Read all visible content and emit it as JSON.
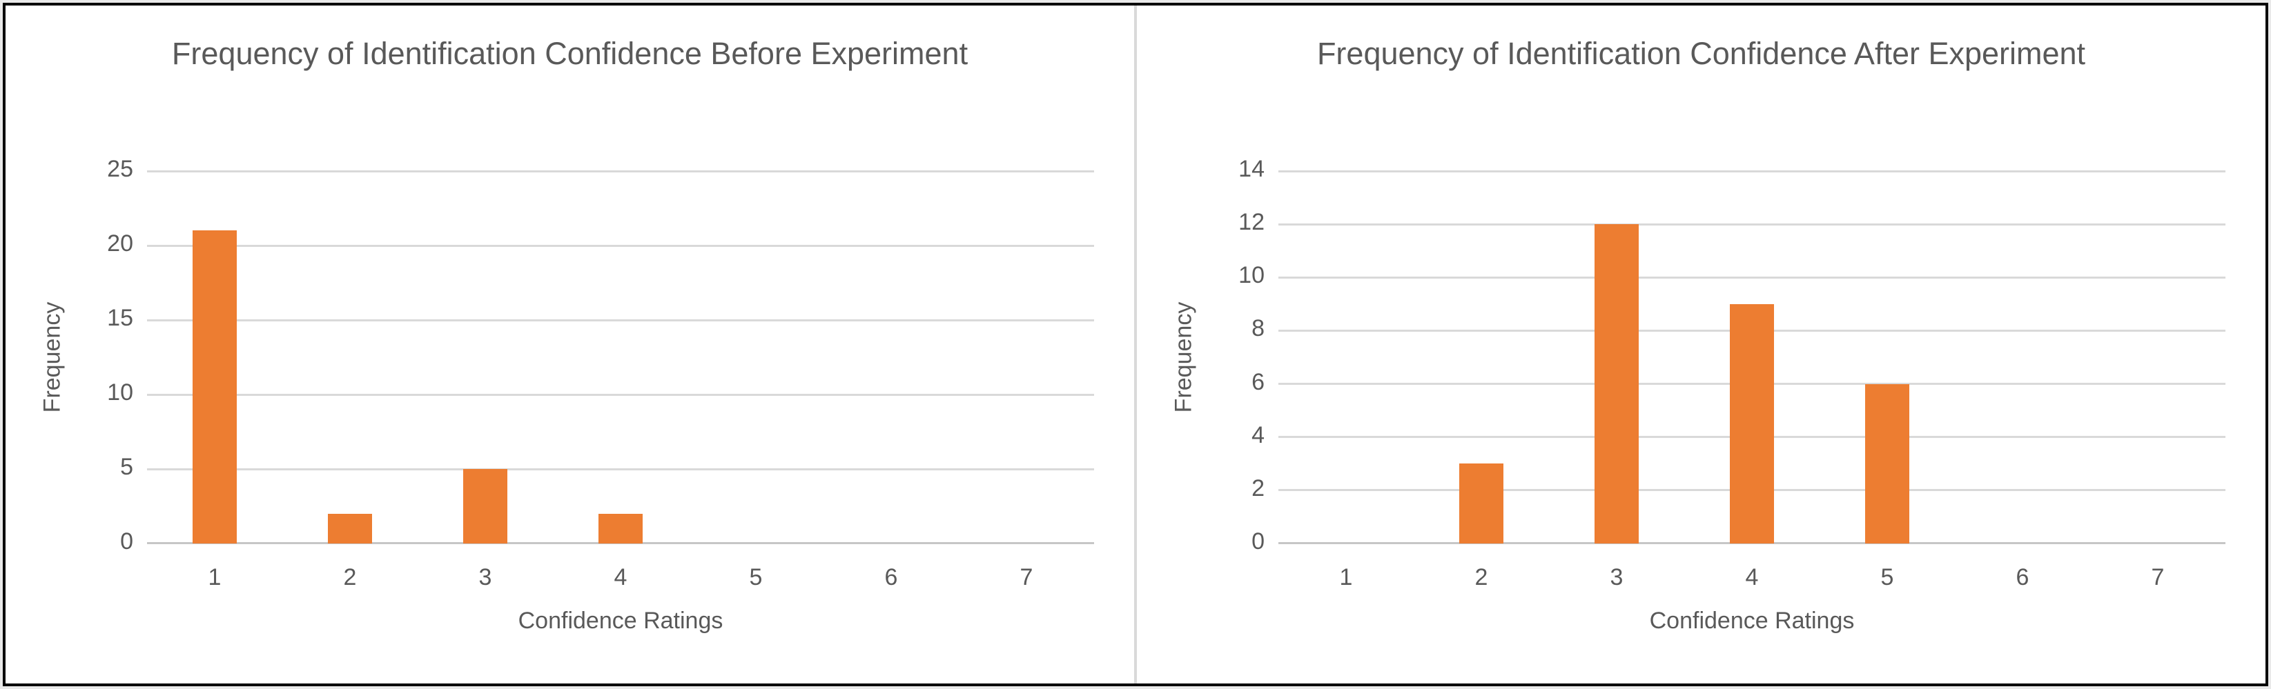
{
  "frame": {
    "outer_edge_color": "#e9e9e9",
    "border_color": "#000000",
    "background_color": "#ffffff",
    "divider_color": "#d9d9d9"
  },
  "colors": {
    "bar": "#ED7D31",
    "text": "#595959",
    "gridline": "#d9d9d9",
    "axis_line": "#c6c6c6"
  },
  "chart_data": [
    {
      "type": "bar",
      "title": "Frequency of Identification Confidence Before Experiment",
      "xlabel": "Confidence Ratings",
      "ylabel": "Frequency",
      "categories": [
        "1",
        "2",
        "3",
        "4",
        "5",
        "6",
        "7"
      ],
      "values": [
        21,
        2,
        5,
        2,
        0,
        0,
        0
      ],
      "ylim": [
        0,
        25
      ],
      "yticks": [
        0,
        5,
        10,
        15,
        20,
        25
      ],
      "grid": true,
      "legend": "none",
      "bar_color": "#ED7D31"
    },
    {
      "type": "bar",
      "title": "Frequency of Identification Confidence After Experiment",
      "xlabel": "Confidence Ratings",
      "ylabel": "Frequency",
      "categories": [
        "1",
        "2",
        "3",
        "4",
        "5",
        "6",
        "7"
      ],
      "values": [
        0,
        3,
        12,
        9,
        6,
        0,
        0
      ],
      "ylim": [
        0,
        14
      ],
      "yticks": [
        0,
        2,
        4,
        6,
        8,
        10,
        12,
        14
      ],
      "grid": true,
      "legend": "none",
      "bar_color": "#ED7D31"
    }
  ]
}
